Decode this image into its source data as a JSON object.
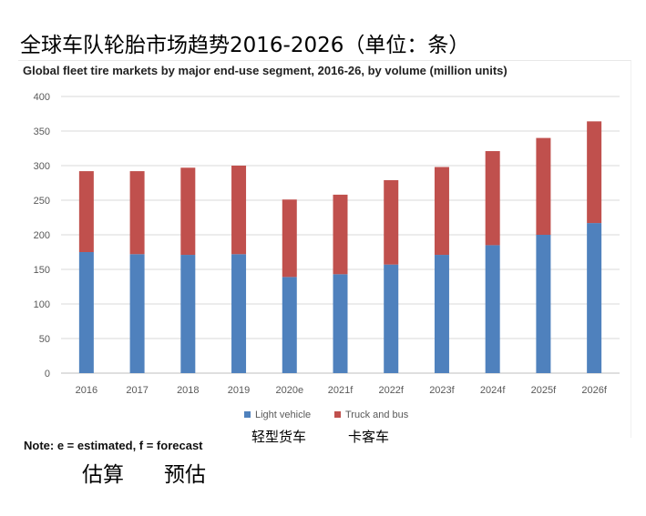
{
  "page_title_zh": "全球车队轮胎市场趋势2016-2026（单位：条）",
  "note": "Note: e = estimated, f = forecast",
  "note_zh": {
    "estimated": "估算",
    "forecast": "预估"
  },
  "legend_zh": {
    "light_vehicle": "轻型货车",
    "truck_and_bus": "卡客车"
  },
  "chart_data": {
    "type": "bar",
    "stacked": true,
    "title": "Global fleet tire markets by major end-use segment, 2016-26, by volume (million units)",
    "categories": [
      "2016",
      "2017",
      "2018",
      "2019",
      "2020e",
      "2021f",
      "2022f",
      "2023f",
      "2024f",
      "2025f",
      "2026f"
    ],
    "series": [
      {
        "name": "Light vehicle",
        "color": "#4f81bd",
        "values": [
          175,
          172,
          171,
          172,
          139,
          143,
          157,
          171,
          185,
          200,
          217
        ]
      },
      {
        "name": "Truck and bus",
        "color": "#c0504d",
        "values": [
          117,
          120,
          126,
          128,
          112,
          115,
          122,
          127,
          136,
          140,
          147
        ]
      }
    ],
    "yticks": [
      0,
      50,
      100,
      150,
      200,
      250,
      300,
      350,
      400
    ],
    "ylim": [
      0,
      400
    ],
    "grid": true,
    "legend_position": "bottom"
  }
}
